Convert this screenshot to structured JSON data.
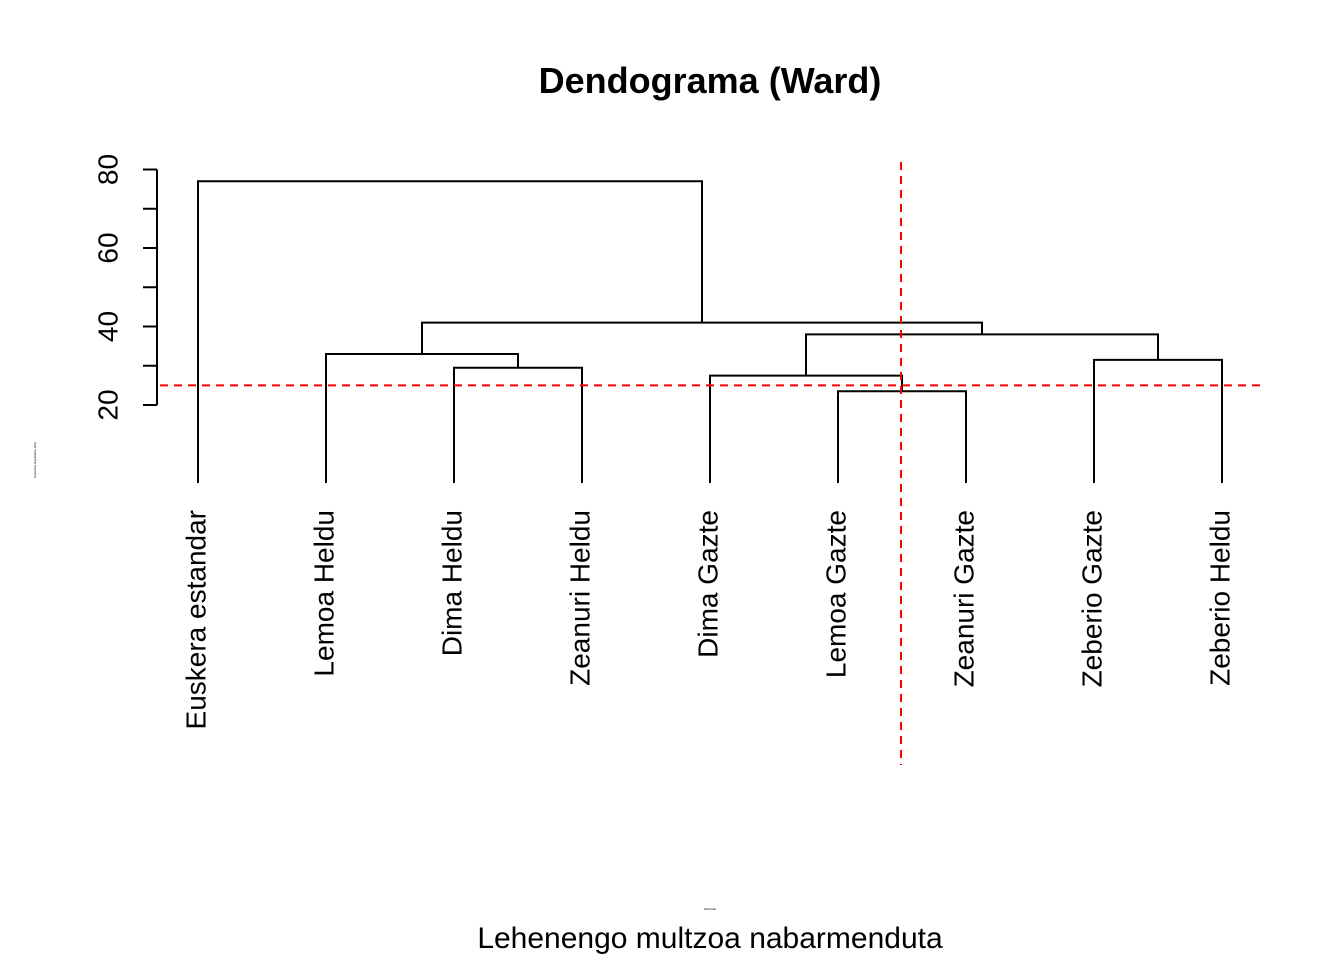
{
  "chart_data": {
    "type": "dendrogram",
    "title": "Dendograma (Ward)",
    "subtitle": "Lehenengo multzoa nabarmenduta",
    "ylabel": "Distantzia linguistikoa (ED)",
    "xlabel": "Multzoak",
    "ylim": [
      0,
      80
    ],
    "yticks": [
      20,
      40,
      60,
      80
    ],
    "leaves": [
      "Euskera estandar",
      "Lemoa Heldu",
      "Dima Heldu",
      "Zeanuri Heldu",
      "Dima Gazte",
      "Lemoa Gazte",
      "Zeanuri Gazte",
      "Zeberio Gazte",
      "Zeberio Heldu"
    ],
    "merges": [
      {
        "id": "m1",
        "left": "leaf:5",
        "right": "leaf:6",
        "height": 23.5
      },
      {
        "id": "m2",
        "left": "leaf:4",
        "right": "m1",
        "height": 27.5
      },
      {
        "id": "m3",
        "left": "leaf:2",
        "right": "leaf:3",
        "height": 29.5
      },
      {
        "id": "m4",
        "left": "leaf:7",
        "right": "leaf:8",
        "height": 31.5
      },
      {
        "id": "m5",
        "left": "leaf:1",
        "right": "m3",
        "height": 33
      },
      {
        "id": "m6",
        "left": "m2",
        "right": "m4",
        "height": 38
      },
      {
        "id": "m7",
        "left": "m5",
        "right": "m6",
        "height": 41
      },
      {
        "id": "m8",
        "left": "leaf:0",
        "right": "m7",
        "height": 77
      }
    ],
    "cut_height": 25,
    "highlight_between_leaves": [
      5,
      6
    ],
    "colors": {
      "tree": "#000000",
      "cut": "#ff0000"
    }
  }
}
